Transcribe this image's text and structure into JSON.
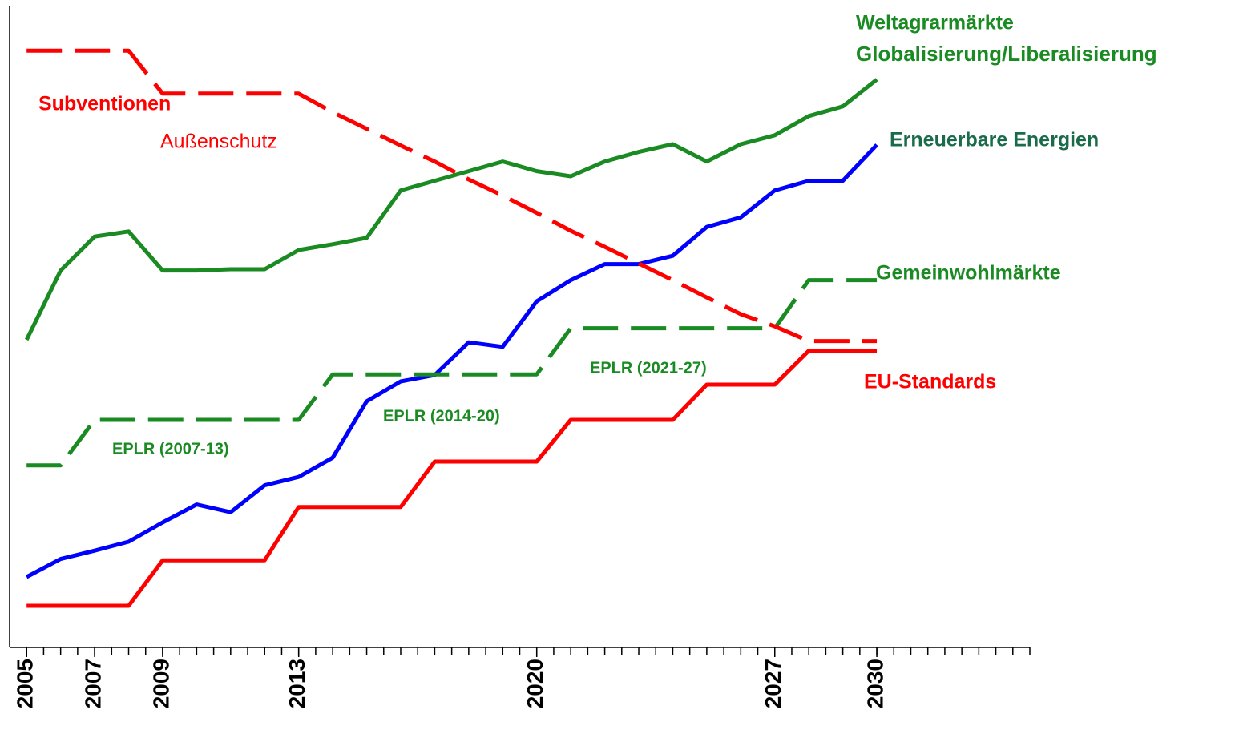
{
  "chart_data": {
    "type": "line",
    "x": [
      2005,
      2006,
      2007,
      2008,
      2009,
      2010,
      2011,
      2012,
      2013,
      2014,
      2015,
      2016,
      2017,
      2018,
      2019,
      2020,
      2021,
      2022,
      2023,
      2024,
      2025,
      2026,
      2027,
      2028,
      2029,
      2030
    ],
    "xlim": [
      2004.5,
      2034.5
    ],
    "xticks": [
      2005,
      2007,
      2009,
      2013,
      2020,
      2027,
      2030
    ],
    "minor_xtick_step": 0.5,
    "ylim": [
      0,
      100
    ],
    "series": [
      {
        "name": "Weltagrarmärkte",
        "color": "#1a8a22",
        "dashed": false,
        "values": [
          48,
          58.8,
          64.1,
          64.9,
          58.8,
          58.8,
          59,
          59,
          62,
          62.9,
          63.9,
          71.3,
          72.8,
          74.3,
          75.8,
          74.3,
          73.5,
          75.8,
          77.3,
          78.5,
          75.8,
          78.5,
          79.9,
          82.9,
          84.4,
          88.6
        ]
      },
      {
        "name": "Erneuerbare Energien",
        "color": "#0000ff",
        "dashed": false,
        "values": [
          11,
          13.8,
          15.1,
          16.5,
          19.5,
          22.3,
          21.1,
          25.3,
          26.6,
          29.6,
          38.4,
          41.5,
          42.5,
          47.6,
          46.9,
          54,
          57.3,
          59.8,
          59.8,
          61.1,
          65.6,
          67.1,
          71.3,
          72.8,
          72.8,
          78.4
        ]
      },
      {
        "name": "Gemeinwohlmärkte",
        "color": "#1a8a22",
        "dashed": true,
        "values": [
          28.4,
          28.4,
          35.5,
          35.5,
          35.5,
          35.5,
          35.5,
          35.5,
          35.5,
          42.6,
          42.6,
          42.6,
          42.6,
          42.6,
          42.6,
          42.6,
          49.8,
          49.8,
          49.8,
          49.8,
          49.8,
          49.8,
          49.8,
          57.3,
          57.3,
          57.3
        ]
      },
      {
        "name": "Subventionen",
        "color": "#ff0000",
        "dashed": true,
        "values": [
          93.1,
          93.1,
          93.1,
          93.1,
          86.4,
          86.4,
          86.4,
          86.4,
          86.4,
          83.5,
          80.9,
          78.3,
          75.8,
          73,
          70.5,
          67.8,
          65,
          62.5,
          59.9,
          57.3,
          54.6,
          52,
          50.1,
          47.8,
          47.8,
          47.8
        ]
      },
      {
        "name": "EU-Standards",
        "color": "#ff0000",
        "dashed": false,
        "values": [
          6.5,
          6.5,
          6.5,
          6.5,
          13.6,
          13.6,
          13.6,
          13.6,
          21.9,
          21.9,
          21.9,
          21.9,
          29,
          29,
          29,
          29,
          35.5,
          35.5,
          35.5,
          35.5,
          41,
          41,
          41,
          46.3,
          46.3,
          46.3
        ]
      }
    ],
    "annotations": [
      {
        "text": "Globalisierung/Liberalisierung",
        "color": "#1a8a22"
      },
      {
        "text": "Außenschutz",
        "color": "#ff0000"
      },
      {
        "text": "EPLR (2007-13)",
        "color": "#1a8a22"
      },
      {
        "text": "EPLR (2014-20)",
        "color": "#1a8a22"
      },
      {
        "text": "EPLR (2021-27)",
        "color": "#1a8a22"
      }
    ]
  }
}
